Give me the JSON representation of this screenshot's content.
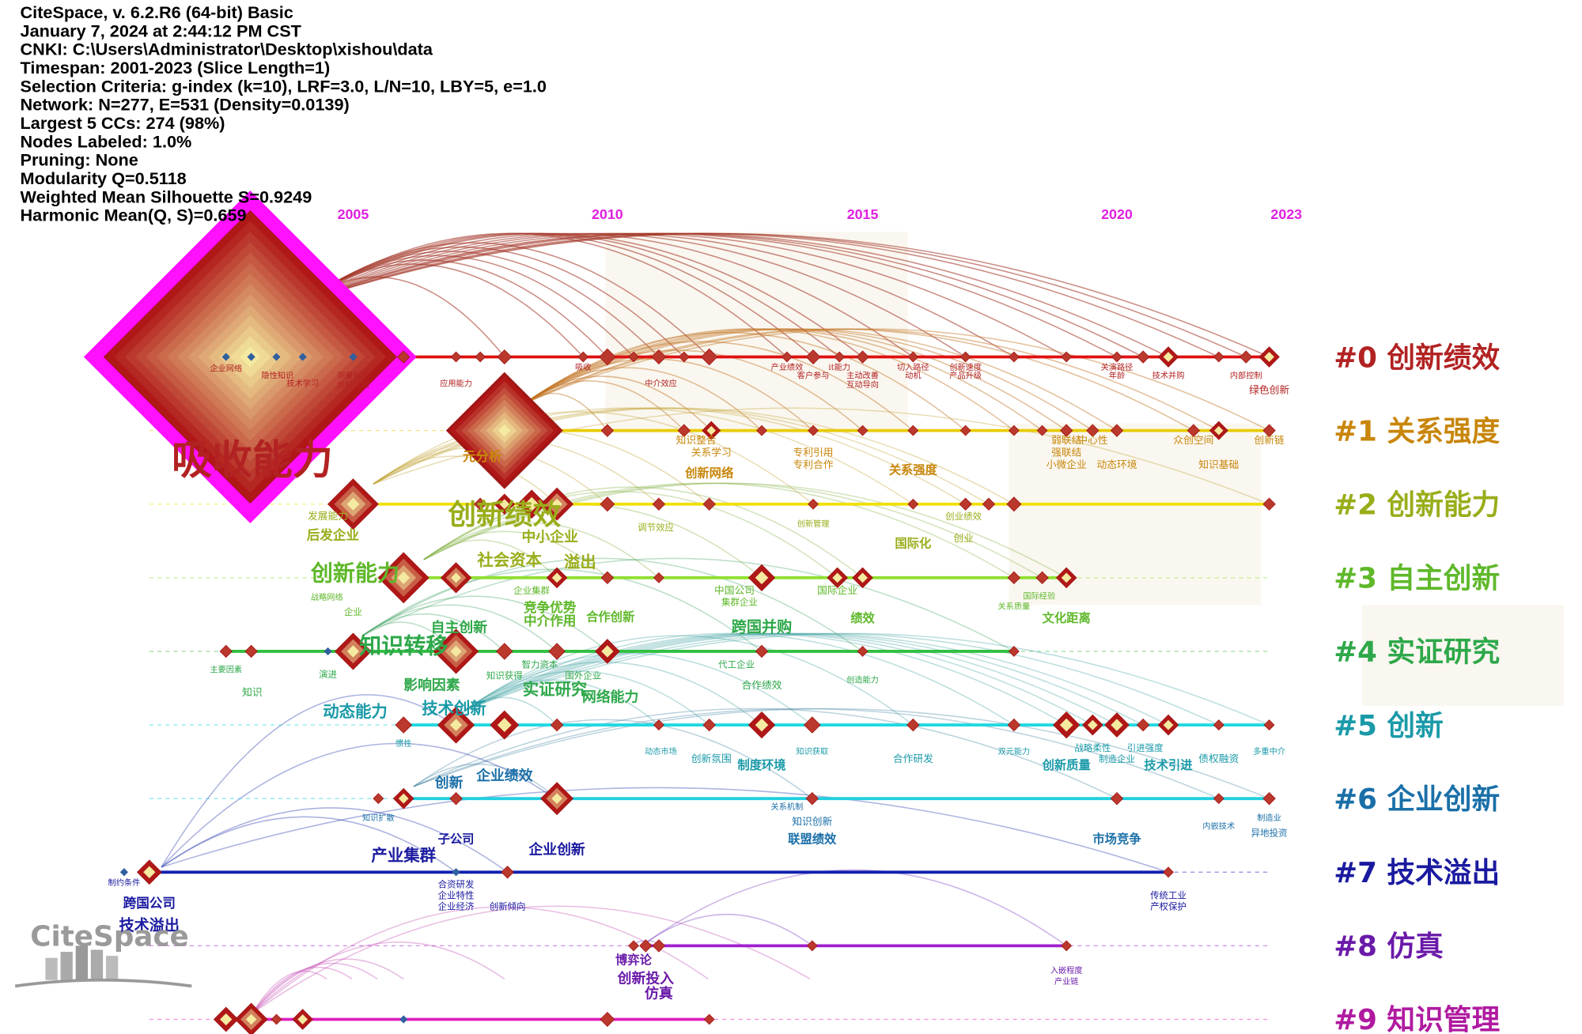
{
  "header": {
    "lines": [
      "CiteSpace, v. 6.2.R6 (64-bit) Basic",
      "January 7, 2024 at 2:44:12 PM CST",
      "CNKI: C:\\Users\\Administrator\\Desktop\\xishou\\data",
      "Timespan: 2001-2023 (Slice Length=1)",
      "Selection Criteria: g-index (k=10), LRF=3.0, L/N=10, LBY=5, e=1.0",
      "Network: N=277, E=531 (Density=0.0139)",
      "Largest 5 CCs: 274 (98%)",
      "Nodes Labeled: 1.0%",
      "Pruning: None",
      "Modularity Q=0.5118",
      "Weighted Mean Silhouette S=0.9249",
      "Harmonic Mean(Q, S)=0.659"
    ]
  },
  "years": [
    "2005",
    "2010",
    "2015",
    "2020",
    "2023"
  ],
  "watermark": "CiteSpace",
  "clusters": [
    {
      "label": "#0 创新绩效",
      "keywords": [
        "吸收能力",
        "企业网络",
        "隐性知识",
        "技术学习",
        "测量指标",
        "分析模式",
        "应用能力",
        "吸收",
        "中介效应",
        "产业绩效",
        "客户参与",
        "it能力",
        "主动改善",
        "互动导向",
        "切入路径",
        "动机",
        "创新速度",
        "产品升级",
        "关演路径",
        "年龄",
        "技术并购",
        "内部控制",
        "绿色创新"
      ]
    },
    {
      "label": "#1 关系强度",
      "keywords": [
        "元分析",
        "知识整合",
        "关系学习",
        "创新网络",
        "专利引用",
        "专利合作",
        "关系强度",
        "弱联结",
        "强联结",
        "中心性",
        "小微企业",
        "动态环境",
        "众创空间",
        "知识基础",
        "创新链"
      ]
    },
    {
      "label": "#2 创新能力",
      "keywords": [
        "创新绩效",
        "发展能力",
        "后发企业",
        "中小企业",
        "调节效应",
        "社会资本",
        "溢出",
        "创新管理",
        "国际化",
        "创业绩效",
        "创业"
      ]
    },
    {
      "label": "#3 自主创新",
      "keywords": [
        "创新能力",
        "战略网络",
        "企业",
        "企业集群",
        "竞争优势",
        "中介作用",
        "合作创新",
        "中国公司",
        "集群企业",
        "国际企业",
        "绩效",
        "关系质量",
        "文化距离",
        "国际经验"
      ]
    },
    {
      "label": "#4 实证研究",
      "keywords": [
        "知识转移",
        "主要因素",
        "知识",
        "演进",
        "自主创新",
        "智力资本",
        "知识获得",
        "国外企业",
        "影响因素",
        "实证研究",
        "网络能力",
        "跨国并购",
        "代工企业",
        "合作绩效",
        "创造能力"
      ]
    },
    {
      "label": "#5 创新",
      "keywords": [
        "动态能力",
        "技术创新",
        "惯性",
        "动态市场",
        "创新氛围",
        "制度环境",
        "知识获取",
        "合作研发",
        "双元能力",
        "创新质量",
        "战略柔性",
        "引进强度",
        "制造企业",
        "技术引进",
        "债权融资",
        "多重中介"
      ]
    },
    {
      "label": "#6 企业创新",
      "keywords": [
        "创新",
        "企业绩效",
        "知识扩散",
        "关系机制",
        "知识创新",
        "联盟绩效",
        "市场竞争",
        "内嵌技术",
        "制造业",
        "异地投资"
      ]
    },
    {
      "label": "#7 技术溢出",
      "keywords": [
        "子公司",
        "产业集群",
        "企业创新",
        "制约条件",
        "跨国公司",
        "技术溢出",
        "合资研发",
        "企业特性",
        "企业经济",
        "创新倾向",
        "传统工业",
        "产权保护"
      ]
    },
    {
      "label": "#8 仿真",
      "keywords": [
        "博弈论",
        "创新投入",
        "仿真",
        "入嵌程度",
        "产业链"
      ]
    },
    {
      "label": "#9 知识管理",
      "keywords": []
    }
  ]
}
